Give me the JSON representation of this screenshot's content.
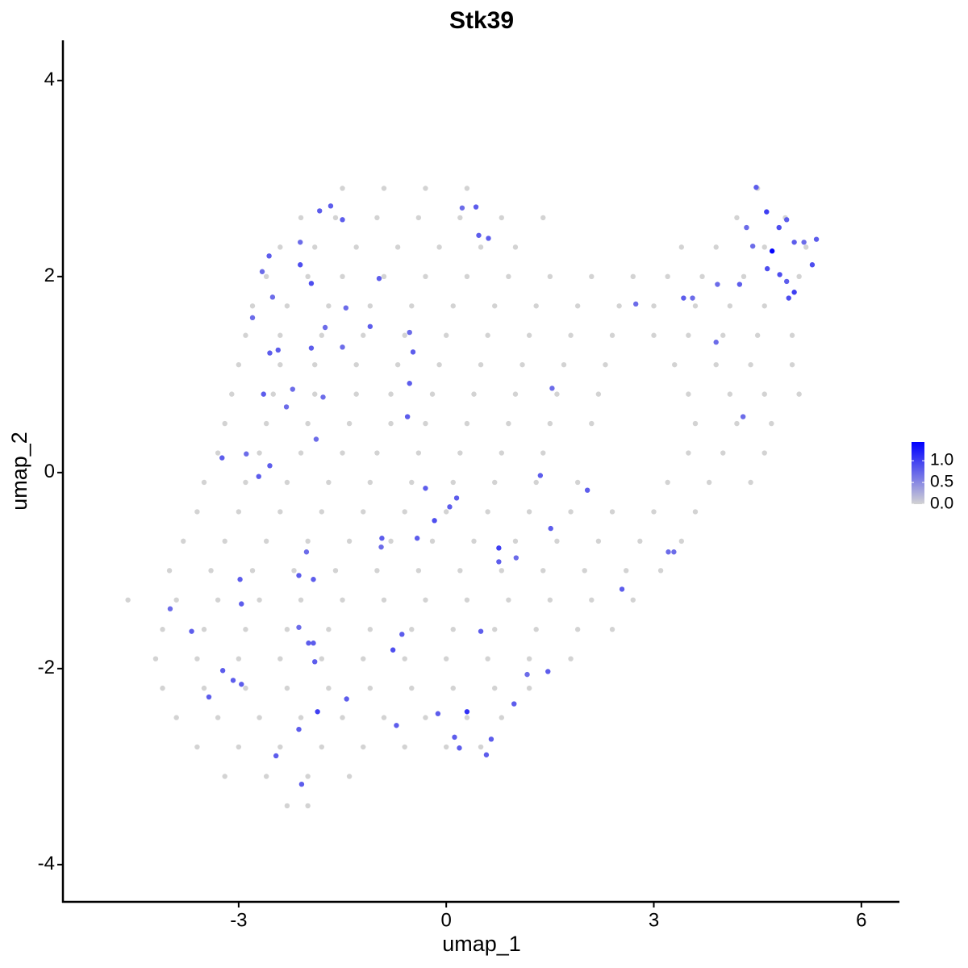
{
  "chart_data": {
    "type": "scatter",
    "title": "Stk39",
    "x_label": "umap_1",
    "y_label": "umap_2",
    "xlim": [
      -5.54,
      6.55
    ],
    "ylim": [
      -4.38,
      4.41
    ],
    "xticks": [
      -3,
      0,
      3,
      6
    ],
    "yticks": [
      -4,
      -2,
      0,
      2,
      4
    ],
    "series": [
      {
        "color": "#d3d3d3",
        "x": [
          -1.5,
          -0.9,
          -0.3,
          0.3,
          4.5,
          -2.1,
          -1.6,
          -1.0,
          -0.4,
          0.2,
          0.8,
          1.4,
          4.2,
          4.9,
          -2.4,
          -1.9,
          -1.3,
          -0.7,
          -0.1,
          0.5,
          1.0,
          3.4,
          3.9,
          4.6,
          5.2,
          -2.6,
          -2.0,
          -1.5,
          -0.9,
          -0.3,
          0.3,
          0.9,
          1.5,
          2.1,
          2.7,
          3.2,
          3.7,
          4.3,
          5.1,
          -2.8,
          -2.3,
          -1.7,
          -1.1,
          -0.5,
          0.1,
          0.7,
          1.3,
          1.9,
          2.5,
          3.0,
          3.6,
          4.1,
          4.6,
          -2.9,
          -2.4,
          -1.8,
          -1.2,
          -0.6,
          0,
          0.6,
          1.2,
          1.8,
          2.4,
          3.0,
          3.5,
          4.0,
          4.5,
          5.0,
          -3.0,
          -2.4,
          -1.9,
          -1.3,
          -0.7,
          -0.1,
          0.5,
          1.1,
          1.7,
          2.3,
          3.3,
          3.9,
          4.4,
          5.0,
          -3.1,
          -2.5,
          -1.9,
          -1.3,
          -0.8,
          -0.2,
          0.4,
          1.0,
          1.6,
          2.2,
          3.5,
          4.1,
          4.6,
          5.1,
          -3.2,
          -2.6,
          -2.0,
          -1.4,
          -0.8,
          -0.3,
          0.3,
          0.9,
          1.5,
          2.1,
          3.6,
          4.2,
          4.7,
          -3.3,
          -2.7,
          -2.1,
          -1.5,
          -1.0,
          -0.4,
          0.2,
          0.8,
          1.4,
          3.5,
          4.0,
          4.6,
          -3.5,
          -2.9,
          -2.3,
          -1.7,
          -1.1,
          -0.5,
          0.1,
          0.7,
          1.3,
          1.9,
          3.2,
          3.8,
          4.4,
          -3.6,
          -3.0,
          -2.4,
          -1.8,
          -1.2,
          -0.6,
          0,
          0.6,
          1.2,
          1.8,
          2.4,
          3.0,
          3.6,
          -3.8,
          -3.2,
          -2.6,
          -2.0,
          -1.4,
          -0.8,
          -0.2,
          0.4,
          1.0,
          1.6,
          2.2,
          2.8,
          3.4,
          -4.0,
          -3.4,
          -2.8,
          -2.2,
          -1.6,
          -1.0,
          -0.4,
          0.2,
          0.8,
          1.4,
          2.0,
          2.6,
          3.1,
          -4.6,
          -3.9,
          -3.3,
          -2.7,
          -2.1,
          -1.5,
          -0.9,
          -0.3,
          0.3,
          0.9,
          1.5,
          2.1,
          2.7,
          -4.1,
          -3.5,
          -2.9,
          -2.3,
          -1.7,
          -1.1,
          -0.5,
          0.1,
          0.7,
          1.3,
          1.9,
          2.4,
          -4.2,
          -3.6,
          -3.0,
          -2.4,
          -1.8,
          -1.2,
          -0.6,
          0,
          0.6,
          1.2,
          1.8,
          -4.1,
          -3.5,
          -2.9,
          -2.3,
          -1.7,
          -1.1,
          -0.5,
          0.1,
          0.7,
          1.2,
          -3.9,
          -3.3,
          -2.7,
          -2.1,
          -1.5,
          -0.9,
          -0.3,
          0.3,
          0.8,
          -3.6,
          -3.0,
          -2.4,
          -1.8,
          -1.2,
          -0.6,
          0,
          0.5,
          -3.2,
          -2.6,
          -2.0,
          -1.4,
          -2.3,
          -2.0
        ],
        "y": [
          2.9,
          2.9,
          2.9,
          2.9,
          2.9,
          2.6,
          2.6,
          2.6,
          2.6,
          2.6,
          2.6,
          2.6,
          2.6,
          2.6,
          2.3,
          2.3,
          2.3,
          2.3,
          2.3,
          2.3,
          2.3,
          2.3,
          2.3,
          2.3,
          2.3,
          2,
          2,
          2,
          2,
          2,
          2,
          2,
          2,
          2,
          2,
          2,
          2,
          2,
          2,
          1.7,
          1.7,
          1.7,
          1.7,
          1.7,
          1.7,
          1.7,
          1.7,
          1.7,
          1.7,
          1.7,
          1.7,
          1.7,
          1.7,
          1.4,
          1.4,
          1.4,
          1.4,
          1.4,
          1.4,
          1.4,
          1.4,
          1.4,
          1.4,
          1.4,
          1.4,
          1.4,
          1.4,
          1.4,
          1.1,
          1.1,
          1.1,
          1.1,
          1.1,
          1.1,
          1.1,
          1.1,
          1.1,
          1.1,
          1.1,
          1.1,
          1.1,
          1.1,
          0.8,
          0.8,
          0.8,
          0.8,
          0.8,
          0.8,
          0.8,
          0.8,
          0.8,
          0.8,
          0.8,
          0.8,
          0.8,
          0.8,
          0.5,
          0.5,
          0.5,
          0.5,
          0.5,
          0.5,
          0.5,
          0.5,
          0.5,
          0.5,
          0.5,
          0.5,
          0.5,
          0.2,
          0.2,
          0.2,
          0.2,
          0.2,
          0.2,
          0.2,
          0.2,
          0.2,
          0.2,
          0.2,
          0.2,
          -0.1,
          -0.1,
          -0.1,
          -0.1,
          -0.1,
          -0.1,
          -0.1,
          -0.1,
          -0.1,
          -0.1,
          -0.1,
          -0.1,
          -0.1,
          -0.4,
          -0.4,
          -0.4,
          -0.4,
          -0.4,
          -0.4,
          -0.4,
          -0.4,
          -0.4,
          -0.4,
          -0.4,
          -0.4,
          -0.4,
          -0.7,
          -0.7,
          -0.7,
          -0.7,
          -0.7,
          -0.7,
          -0.7,
          -0.7,
          -0.7,
          -0.7,
          -0.7,
          -0.7,
          -0.7,
          -1,
          -1,
          -1,
          -1,
          -1,
          -1,
          -1,
          -1,
          -1,
          -1,
          -1,
          -1,
          -1,
          -1.3,
          -1.3,
          -1.3,
          -1.3,
          -1.3,
          -1.3,
          -1.3,
          -1.3,
          -1.3,
          -1.3,
          -1.3,
          -1.3,
          -1.3,
          -1.6,
          -1.6,
          -1.6,
          -1.6,
          -1.6,
          -1.6,
          -1.6,
          -1.6,
          -1.6,
          -1.6,
          -1.6,
          -1.6,
          -1.9,
          -1.9,
          -1.9,
          -1.9,
          -1.9,
          -1.9,
          -1.9,
          -1.9,
          -1.9,
          -1.9,
          -1.9,
          -2.2,
          -2.2,
          -2.2,
          -2.2,
          -2.2,
          -2.2,
          -2.2,
          -2.2,
          -2.2,
          -2.2,
          -2.5,
          -2.5,
          -2.5,
          -2.5,
          -2.5,
          -2.5,
          -2.5,
          -2.5,
          -2.5,
          -2.8,
          -2.8,
          -2.8,
          -2.8,
          -2.8,
          -2.8,
          -2.8,
          -2.8,
          -3.1,
          -3.1,
          -3.1,
          -3.1,
          -3.4,
          -3.4
        ]
      },
      {
        "x": [
          4.48,
          4.63,
          4.34,
          4.43,
          4.71,
          4.81,
          4.92,
          5.03,
          5.17,
          5.35,
          5.29,
          4.64,
          4.82,
          4.92,
          5.03,
          4.95,
          4.24,
          3.92,
          3.9,
          4.29,
          3.43,
          3.56,
          2.74,
          1.53,
          1.36,
          2.04,
          1.51,
          0.76,
          1.01,
          0.76,
          2.54,
          3.21,
          3.29,
          1.17,
          1.47,
          0.98,
          0.3,
          -0.12,
          0.12,
          0.19,
          0.65,
          0.58,
          0.5,
          -0.64,
          -0.77,
          -0.72,
          0.05,
          0.15,
          -0.17,
          -0.42,
          -0.3,
          -0.93,
          -0.94,
          -0.56,
          -0.53,
          -0.48,
          -0.53,
          -1.1,
          -0.97,
          -1.5,
          -1.45,
          -1.75,
          -1.95,
          -1.95,
          -2.11,
          -2.11,
          -1.83,
          -1.67,
          -1.5,
          -2.56,
          -2.66,
          -2.51,
          -2.8,
          -2.43,
          -2.55,
          -2.64,
          -2.22,
          -2.31,
          -1.78,
          -1.88,
          -2.55,
          -2.71,
          -2.89,
          -3.24,
          -2.02,
          -1.92,
          -2.13,
          -2.98,
          -2.96,
          -2.13,
          -1.99,
          -1.92,
          -1.9,
          -3.68,
          -3.99,
          -3.23,
          -3.08,
          -2.96,
          -3.43,
          -1.86,
          -1.44,
          -2.13,
          -2.46,
          -2.09,
          0.43,
          0.23,
          0.47,
          0.61
        ],
        "y": [
          2.91,
          2.66,
          2.5,
          2.31,
          2.26,
          2.5,
          2.58,
          2.35,
          2.35,
          2.38,
          2.12,
          2.08,
          2.02,
          1.95,
          1.84,
          1.78,
          1.92,
          1.92,
          1.33,
          0.57,
          1.78,
          1.78,
          1.72,
          0.86,
          -0.03,
          -0.18,
          -0.57,
          -0.77,
          -0.87,
          -0.91,
          -1.19,
          -0.81,
          -0.81,
          -2.06,
          -2.03,
          -2.36,
          -2.44,
          -2.46,
          -2.7,
          -2.81,
          -2.72,
          -2.88,
          -1.62,
          -1.65,
          -1.81,
          -2.58,
          -0.35,
          -0.26,
          -0.49,
          -0.67,
          -0.16,
          -0.67,
          -0.76,
          0.57,
          0.91,
          1.23,
          1.43,
          1.49,
          1.98,
          1.28,
          1.68,
          1.48,
          1.27,
          1.93,
          2.12,
          2.35,
          2.67,
          2.72,
          2.58,
          2.21,
          2.05,
          1.79,
          1.58,
          1.25,
          1.22,
          0.8,
          0.85,
          0.67,
          0.77,
          0.34,
          0.07,
          -0.04,
          0.19,
          0.15,
          -0.81,
          -1.09,
          -1.05,
          -1.09,
          -1.34,
          -1.58,
          -1.74,
          -1.74,
          -1.93,
          -1.62,
          -1.39,
          -2.02,
          -2.12,
          -2.16,
          -2.29,
          -2.44,
          -2.31,
          -2.62,
          -2.89,
          -3.18,
          2.71,
          2.7,
          2.42,
          2.39
        ],
        "expression": [
          0.8,
          1.0,
          0.7,
          0.7,
          1.4,
          0.9,
          0.8,
          0.8,
          0.7,
          0.8,
          0.9,
          0.9,
          0.9,
          0.8,
          1.0,
          0.9,
          0.8,
          0.7,
          0.7,
          0.7,
          0.8,
          0.7,
          0.7,
          0.7,
          0.8,
          0.8,
          0.8,
          1.0,
          0.7,
          0.8,
          0.8,
          0.7,
          0.7,
          0.7,
          0.8,
          0.8,
          1.1,
          0.8,
          0.8,
          0.8,
          0.8,
          0.8,
          0.8,
          0.8,
          0.9,
          0.8,
          0.8,
          0.8,
          0.9,
          0.8,
          0.8,
          0.8,
          0.7,
          0.8,
          0.8,
          0.8,
          0.7,
          0.8,
          0.8,
          0.7,
          0.7,
          0.7,
          0.8,
          0.9,
          0.9,
          0.7,
          0.8,
          0.8,
          0.8,
          0.8,
          0.7,
          0.7,
          0.7,
          0.8,
          0.8,
          0.8,
          0.7,
          0.7,
          0.7,
          0.7,
          0.8,
          0.8,
          0.7,
          0.8,
          0.7,
          0.8,
          0.8,
          0.8,
          0.8,
          0.7,
          0.8,
          0.8,
          0.8,
          0.8,
          0.7,
          0.8,
          0.8,
          0.8,
          0.8,
          1.0,
          0.8,
          0.8,
          0.8,
          0.8,
          0.8,
          0.7,
          0.8,
          0.8
        ]
      }
    ],
    "colorbar": {
      "low": "#d3d3d3",
      "high": "#0000ff",
      "lim": [
        0,
        1.43
      ],
      "ticks": [
        {
          "value": 0,
          "label": "0.0"
        },
        {
          "value": 0.5,
          "label": "0.5"
        },
        {
          "value": 1,
          "label": "1.0"
        }
      ]
    }
  }
}
